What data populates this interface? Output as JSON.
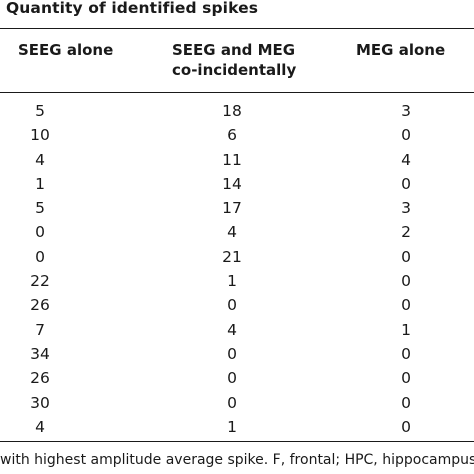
{
  "table": {
    "title": "Quantity of identified spikes",
    "columns": [
      "SEEG alone",
      "SEEG and MEG",
      "MEG alone"
    ],
    "column2_line2": "co-incidentally",
    "rows": [
      [
        "5",
        "18",
        "3"
      ],
      [
        "10",
        "6",
        "0"
      ],
      [
        "4",
        "11",
        "4"
      ],
      [
        "1",
        "14",
        "0"
      ],
      [
        "5",
        "17",
        "3"
      ],
      [
        "0",
        "4",
        "2"
      ],
      [
        "0",
        "21",
        "0"
      ],
      [
        "22",
        "1",
        "0"
      ],
      [
        "26",
        "0",
        "0"
      ],
      [
        "7",
        "4",
        "1"
      ],
      [
        "34",
        "0",
        "0"
      ],
      [
        "26",
        "0",
        "0"
      ],
      [
        "30",
        "0",
        "0"
      ],
      [
        "4",
        "1",
        "0"
      ]
    ]
  },
  "footnote": "with highest amplitude average spike. F, frontal; HPC, hippocampus; O,"
}
